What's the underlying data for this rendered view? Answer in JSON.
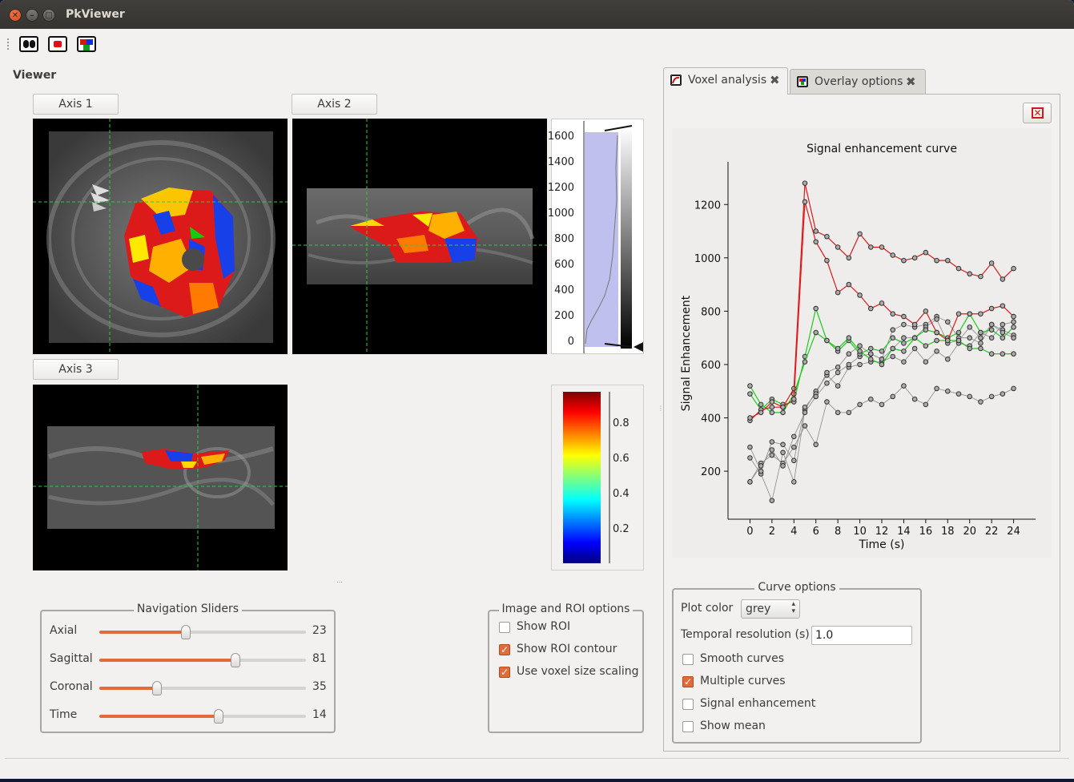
{
  "window": {
    "title": "PkViewer"
  },
  "toolbar": {
    "icons": [
      "lungs-icon",
      "roi-icon",
      "overlay-icon"
    ]
  },
  "viewer": {
    "label": "Viewer",
    "axes": [
      "Axis 1",
      "Axis 2",
      "Axis 3"
    ],
    "histogram_ticks": [
      "1600",
      "1400",
      "1200",
      "1000",
      "800",
      "600",
      "400",
      "200",
      "0"
    ],
    "colorbar_ticks": [
      "0.8",
      "0.6",
      "0.4",
      "0.2"
    ]
  },
  "navigation": {
    "title": "Navigation Sliders",
    "sliders": [
      {
        "label": "Axial",
        "value": "23",
        "level": 0.42
      },
      {
        "label": "Sagittal",
        "value": "81",
        "level": 0.66
      },
      {
        "label": "Coronal",
        "value": "35",
        "level": 0.28
      },
      {
        "label": "Time",
        "value": "14",
        "level": 0.57
      }
    ]
  },
  "image_roi_options": {
    "title": "Image and ROI options",
    "options": [
      {
        "label": "Show ROI",
        "checked": false
      },
      {
        "label": "Show ROI contour",
        "checked": true
      },
      {
        "label": "Use voxel size scaling",
        "checked": true
      }
    ]
  },
  "tabs": [
    {
      "label": "Voxel analysis",
      "active": true
    },
    {
      "label": "Overlay options",
      "active": false
    }
  ],
  "curve_options": {
    "title": "Curve options",
    "plot_color_label": "Plot color",
    "plot_color_value": "grey",
    "temporal_resolution_label": "Temporal resolution (s)",
    "temporal_resolution_value": "1.0",
    "checkboxes": [
      {
        "label": "Smooth curves",
        "checked": false
      },
      {
        "label": "Multiple curves",
        "checked": true
      },
      {
        "label": "Signal enhancement",
        "checked": false
      },
      {
        "label": "Show mean",
        "checked": false
      }
    ]
  },
  "colors": {
    "accent": "#e36b3a",
    "red_curve": "#dd1a1a",
    "green_curve": "#1ec81e",
    "grey_curve": "#888888"
  },
  "chart_data": {
    "type": "line",
    "title": "Signal enhancement curve",
    "xlabel": "Time (s)",
    "ylabel": "Signal Enhancement",
    "xlim": [
      -2,
      26
    ],
    "ylim": [
      20,
      1360
    ],
    "xticks": [
      0,
      2,
      4,
      6,
      8,
      10,
      12,
      14,
      16,
      18,
      20,
      22,
      24
    ],
    "yticks": [
      200,
      400,
      600,
      800,
      1000,
      1200
    ],
    "x": [
      0,
      1,
      2,
      3,
      4,
      5,
      6,
      7,
      8,
      9,
      10,
      11,
      12,
      13,
      14,
      15,
      16,
      17,
      18,
      19,
      20,
      21,
      22,
      23,
      24
    ],
    "grid": false,
    "series": [
      {
        "color": "red",
        "values": [
          390,
          430,
          440,
          440,
          510,
          1280,
          1100,
          1080,
          1040,
          1000,
          1090,
          1040,
          1040,
          1010,
          990,
          1000,
          1020,
          990,
          990,
          960,
          940,
          930,
          980,
          920,
          960
        ]
      },
      {
        "color": "red",
        "values": [
          400,
          420,
          460,
          440,
          470,
          1210,
          1060,
          990,
          870,
          900,
          860,
          810,
          830,
          790,
          780,
          750,
          800,
          720,
          690,
          790,
          790,
          790,
          810,
          820,
          780
        ]
      },
      {
        "color": "green",
        "values": [
          490,
          430,
          470,
          450,
          460,
          630,
          810,
          690,
          650,
          690,
          640,
          660,
          650,
          700,
          680,
          700,
          730,
          720,
          700,
          720,
          790,
          720,
          730,
          700,
          740
        ]
      },
      {
        "color": "green",
        "values": [
          520,
          450,
          420,
          420,
          490,
          610,
          720,
          690,
          660,
          700,
          650,
          620,
          600,
          660,
          650,
          700,
          670,
          690,
          690,
          690,
          660,
          660,
          640,
          640,
          640
        ]
      },
      {
        "color": "grey",
        "values": [
          250,
          190,
          90,
          270,
          160,
          430,
          500,
          560,
          520,
          590,
          600,
          610,
          610,
          630,
          610,
          660,
          610,
          650,
          620,
          680,
          670,
          720,
          700,
          750,
          760
        ]
      },
      {
        "color": "grey",
        "values": [
          290,
          200,
          310,
          300,
          240,
          440,
          490,
          570,
          590,
          640,
          670,
          640,
          620,
          730,
          750,
          740,
          750,
          780,
          760,
          700,
          700,
          680,
          750,
          730,
          710
        ]
      },
      {
        "color": "grey",
        "values": [
          160,
          230,
          260,
          230,
          290,
          370,
          300,
          460,
          420,
          420,
          450,
          470,
          450,
          480,
          520,
          470,
          450,
          510,
          500,
          490,
          480,
          460,
          480,
          490,
          510
        ]
      },
      {
        "color": "grey",
        "values": [
          160,
          220,
          280,
          220,
          330,
          420,
          480,
          530,
          570,
          600,
          630,
          640,
          620,
          660,
          700,
          700,
          740,
          770,
          680,
          690,
          740,
          700,
          750,
          720,
          700
        ]
      }
    ]
  }
}
